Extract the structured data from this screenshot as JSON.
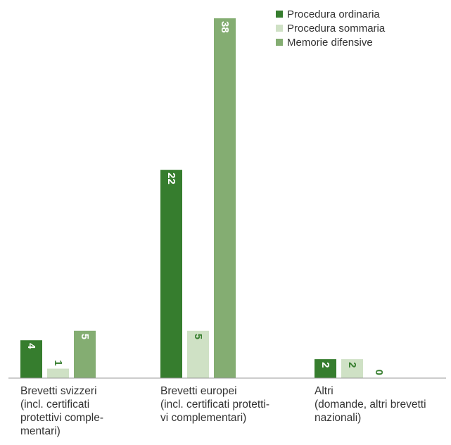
{
  "chart_data": {
    "type": "bar",
    "categories": [
      "Brevetti svizzeri\n(incl. certificati\nprotettivi comple-\nmentari)",
      "Brevetti europei\n(incl. certificati protetti-\nvi complementari)",
      "Altri\n(domande, altri brevetti\nnazionali)"
    ],
    "series": [
      {
        "name": "Procedura ordinaria",
        "color": "#367d2e",
        "values": [
          4,
          22,
          2
        ]
      },
      {
        "name": "Procedura sommaria",
        "color": "#cfe1c5",
        "values": [
          1,
          5,
          2
        ]
      },
      {
        "name": "Memorie difensive",
        "color": "#84ad72",
        "values": [
          5,
          38,
          0
        ]
      }
    ],
    "title": "",
    "xlabel": "",
    "ylabel": "",
    "ylim": [
      0,
      38
    ],
    "grid": false,
    "legend": "top-right",
    "label_colors": {
      "on_bar": "#ffffff",
      "on_light": "#367d2e",
      "outside": "#367d2e"
    }
  }
}
